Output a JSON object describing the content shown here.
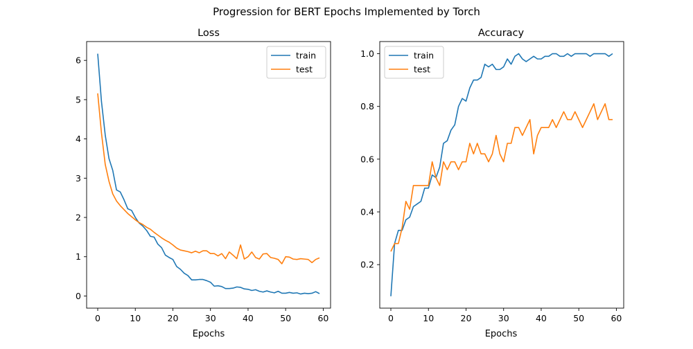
{
  "suptitle": "Progression for BERT Epochs Implemented by Torch",
  "colors": {
    "train": "#1f77b4",
    "test": "#ff7f0e"
  },
  "chart_data": [
    {
      "type": "line",
      "title": "Loss",
      "xlabel": "Epochs",
      "ylabel": "",
      "xlim": [
        -2.95,
        61.95
      ],
      "ylim": [
        -0.31,
        6.48
      ],
      "xticks": [
        0,
        10,
        20,
        30,
        40,
        50,
        60
      ],
      "yticks": [
        0,
        1,
        2,
        3,
        4,
        5,
        6
      ],
      "legend": "top-right",
      "series": [
        {
          "name": "train",
          "values": [
            6.17,
            4.95,
            4.1,
            3.5,
            3.2,
            2.7,
            2.65,
            2.45,
            2.22,
            2.18,
            2.0,
            1.86,
            1.78,
            1.67,
            1.52,
            1.5,
            1.32,
            1.23,
            1.04,
            0.98,
            0.93,
            0.75,
            0.68,
            0.58,
            0.52,
            0.41,
            0.41,
            0.42,
            0.42,
            0.39,
            0.35,
            0.25,
            0.26,
            0.24,
            0.19,
            0.19,
            0.2,
            0.23,
            0.22,
            0.18,
            0.17,
            0.14,
            0.16,
            0.12,
            0.1,
            0.13,
            0.1,
            0.08,
            0.12,
            0.07,
            0.07,
            0.09,
            0.07,
            0.08,
            0.05,
            0.07,
            0.06,
            0.07,
            0.11,
            0.06
          ]
        },
        {
          "name": "test",
          "values": [
            5.16,
            4.15,
            3.35,
            2.92,
            2.6,
            2.42,
            2.3,
            2.2,
            2.1,
            2.02,
            1.94,
            1.87,
            1.82,
            1.75,
            1.7,
            1.62,
            1.55,
            1.48,
            1.42,
            1.37,
            1.3,
            1.22,
            1.17,
            1.15,
            1.13,
            1.1,
            1.14,
            1.1,
            1.15,
            1.15,
            1.08,
            1.08,
            1.02,
            1.08,
            0.95,
            1.12,
            1.04,
            0.95,
            1.3,
            0.94,
            1.0,
            1.12,
            0.98,
            0.94,
            1.07,
            1.08,
            0.98,
            0.96,
            0.93,
            0.82,
            1.0,
            0.99,
            0.94,
            0.93,
            0.95,
            0.94,
            0.93,
            0.85,
            0.93,
            0.97
          ]
        }
      ]
    },
    {
      "type": "line",
      "title": "Accuracy",
      "xlabel": "Epochs",
      "ylabel": "",
      "xlim": [
        -2.95,
        61.95
      ],
      "ylim": [
        0.035,
        1.046
      ],
      "xticks": [
        0,
        10,
        20,
        30,
        40,
        50,
        60
      ],
      "yticks": [
        0.2,
        0.4,
        0.6,
        0.8,
        1.0
      ],
      "yticklabels": [
        "0.2",
        "0.4",
        "0.6",
        "0.8",
        "1.0"
      ],
      "legend": "top-left",
      "series": [
        {
          "name": "train",
          "values": [
            0.08,
            0.28,
            0.33,
            0.33,
            0.37,
            0.38,
            0.42,
            0.43,
            0.44,
            0.49,
            0.49,
            0.54,
            0.53,
            0.57,
            0.66,
            0.67,
            0.71,
            0.73,
            0.8,
            0.83,
            0.82,
            0.87,
            0.9,
            0.9,
            0.91,
            0.96,
            0.95,
            0.96,
            0.94,
            0.94,
            0.95,
            0.98,
            0.96,
            0.99,
            1.0,
            0.98,
            0.97,
            0.98,
            0.99,
            0.98,
            0.98,
            0.99,
            0.99,
            1.0,
            1.0,
            0.99,
            0.99,
            1.0,
            0.99,
            1.0,
            1.0,
            1.0,
            1.0,
            0.99,
            1.0,
            1.0,
            1.0,
            1.0,
            0.99,
            1.0
          ]
        },
        {
          "name": "test",
          "values": [
            0.25,
            0.28,
            0.28,
            0.34,
            0.44,
            0.41,
            0.5,
            0.5,
            0.5,
            0.5,
            0.5,
            0.59,
            0.53,
            0.5,
            0.59,
            0.56,
            0.59,
            0.59,
            0.56,
            0.59,
            0.59,
            0.66,
            0.62,
            0.66,
            0.62,
            0.62,
            0.59,
            0.62,
            0.69,
            0.62,
            0.59,
            0.66,
            0.66,
            0.72,
            0.72,
            0.69,
            0.72,
            0.75,
            0.62,
            0.69,
            0.72,
            0.72,
            0.72,
            0.75,
            0.72,
            0.75,
            0.78,
            0.75,
            0.75,
            0.78,
            0.75,
            0.72,
            0.75,
            0.78,
            0.81,
            0.75,
            0.78,
            0.81,
            0.75,
            0.75
          ]
        }
      ]
    }
  ]
}
